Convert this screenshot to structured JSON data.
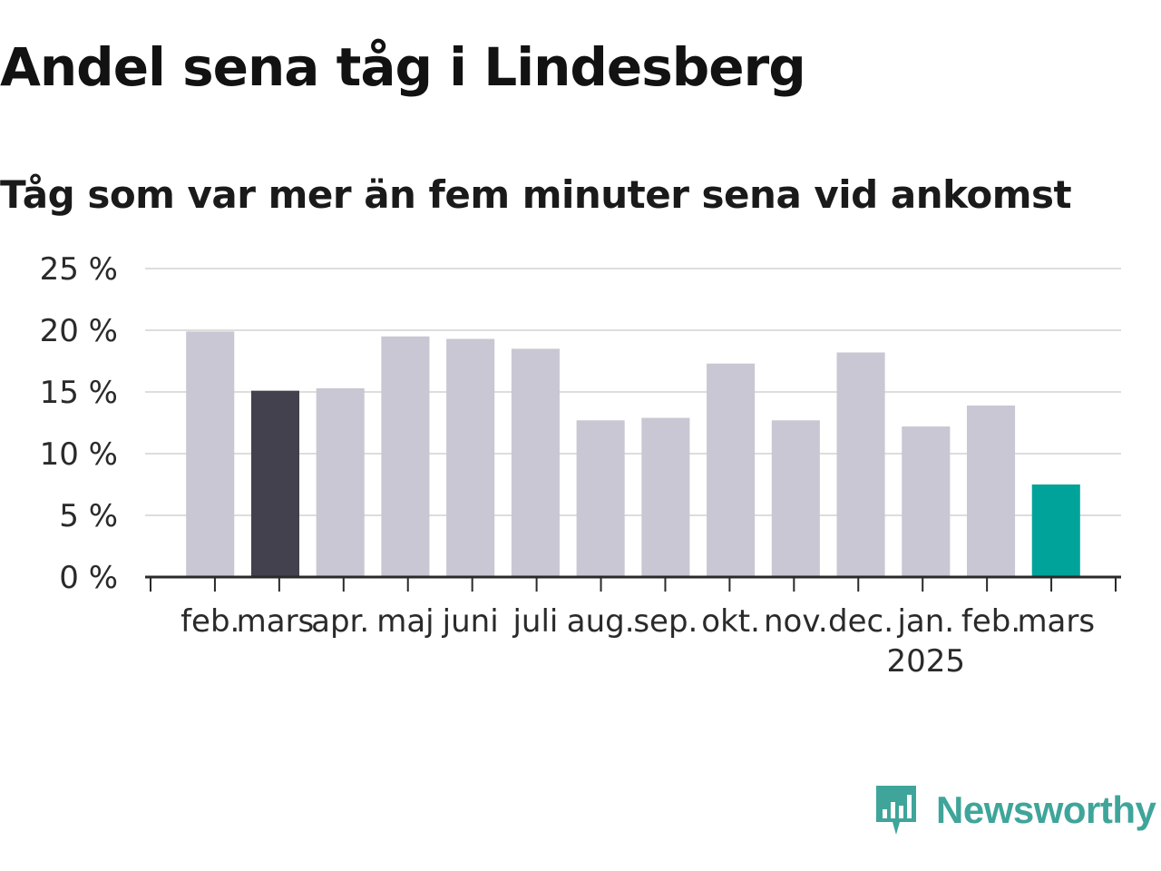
{
  "header": {
    "title": "Andel sena tåg i Lindesberg",
    "subtitle": "Tåg som var mer än fem minuter sena vid ankomst"
  },
  "brand": {
    "name": "Newsworthy",
    "color": "#3fa59a",
    "icon": "newsworthy-chat-bars-icon"
  },
  "colors": {
    "default_bar": "#c8c7d3",
    "compare_bar": "#43414d",
    "latest_bar": "#00a39a",
    "grid": "#dddddd",
    "axis": "#2a2a2a"
  },
  "chart_data": {
    "type": "bar",
    "title": "Andel sena tåg i Lindesberg",
    "subtitle": "Tåg som var mer än fem minuter sena vid ankomst",
    "categories": [
      "feb.",
      "mars",
      "apr.",
      "maj",
      "juni",
      "juli",
      "aug.",
      "sep.",
      "okt.",
      "nov.",
      "dec.",
      "jan.",
      "feb.",
      "mars"
    ],
    "year_labels": [
      {
        "category_index": 11,
        "label": "2025"
      }
    ],
    "values": [
      19.9,
      15.1,
      15.3,
      19.5,
      19.3,
      18.5,
      12.7,
      12.9,
      17.3,
      12.7,
      18.2,
      12.2,
      13.9,
      7.5
    ],
    "highlight": {
      "compare_index": 1,
      "latest_index": 13
    },
    "ylim": [
      0,
      25
    ],
    "yticks": [
      0,
      5,
      10,
      15,
      20,
      25
    ],
    "ytick_labels": [
      "0 %",
      "5 %",
      "10 %",
      "15 %",
      "20 %",
      "25 %"
    ],
    "xlabel": "",
    "ylabel": "",
    "grid": true,
    "legend": "none"
  }
}
